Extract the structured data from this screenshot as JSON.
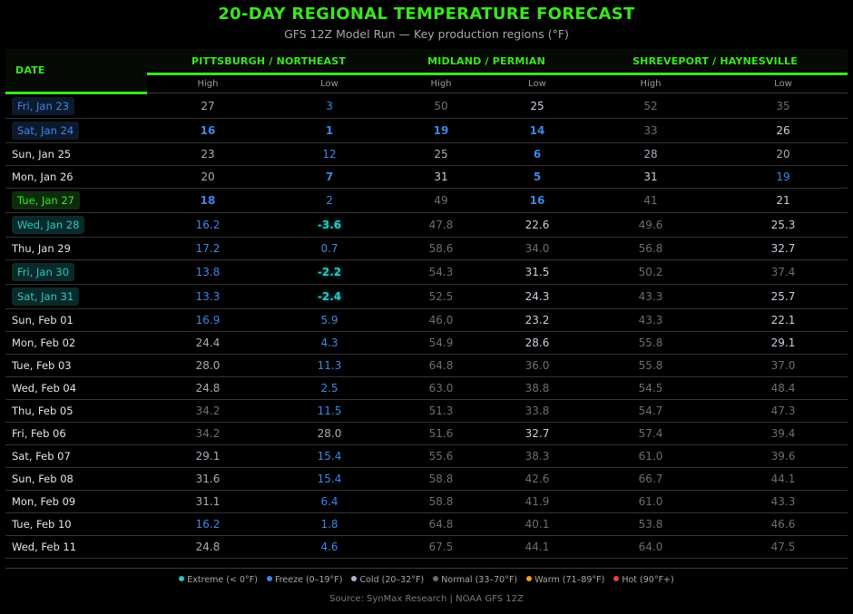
{
  "header": {
    "title": "20-DAY REGIONAL TEMPERATURE FORECAST",
    "subtitle": "GFS 12Z Model Run — Key production regions (°F)"
  },
  "table": {
    "date_header": "DATE",
    "regions": [
      {
        "name": "PITTSBURGH / NORTHEAST",
        "cols": [
          "High",
          "Low"
        ]
      },
      {
        "name": "MIDLAND / PERMIAN",
        "cols": [
          "High",
          "Low"
        ]
      },
      {
        "name": "SHREVEPORT / HAYNESVILLE",
        "cols": [
          "High",
          "Low"
        ]
      }
    ],
    "rows": [
      {
        "date": "Fri, Jan 23",
        "chip": "freeze",
        "vals": [
          "27",
          "3",
          "50",
          "25",
          "52",
          "35"
        ],
        "cls": [
          "v-cold-dim",
          "v-freeze",
          "v-normal",
          "v-cold",
          "v-normal",
          "v-normal"
        ]
      },
      {
        "date": "Sat, Jan 24",
        "chip": "freeze",
        "vals": [
          "16",
          "1",
          "19",
          "14",
          "33",
          "26"
        ],
        "cls": [
          "v-freeze-b",
          "v-freeze-b",
          "v-freeze-b",
          "v-freeze-b",
          "v-normal",
          "v-cold"
        ]
      },
      {
        "date": "Sun, Jan 25",
        "chip": "",
        "vals": [
          "23",
          "12",
          "25",
          "6",
          "28",
          "20"
        ],
        "cls": [
          "v-cold-dim",
          "v-freeze",
          "v-cold-dim",
          "v-freeze-b",
          "v-cold-dim",
          "v-cold-dim"
        ]
      },
      {
        "date": "Mon, Jan 26",
        "chip": "",
        "vals": [
          "20",
          "7",
          "31",
          "5",
          "31",
          "19"
        ],
        "cls": [
          "v-cold-dim",
          "v-freeze-b",
          "v-cold",
          "v-freeze-b",
          "v-cold",
          "v-freeze"
        ]
      },
      {
        "date": "Tue, Jan 27",
        "chip": "green",
        "vals": [
          "18",
          "2",
          "49",
          "16",
          "41",
          "21"
        ],
        "cls": [
          "v-freeze-b",
          "v-freeze",
          "v-normal",
          "v-freeze-b",
          "v-normal",
          "v-cold"
        ]
      },
      {
        "date": "Wed, Jan 28",
        "chip": "extreme",
        "vals": [
          "16.2",
          "-3.6",
          "47.8",
          "22.6",
          "49.6",
          "25.3"
        ],
        "cls": [
          "v-freeze",
          "v-extreme",
          "v-normal",
          "v-cold",
          "v-normal",
          "v-cold"
        ]
      },
      {
        "date": "Thu, Jan 29",
        "chip": "",
        "vals": [
          "17.2",
          "0.7",
          "58.6",
          "34.0",
          "56.8",
          "32.7"
        ],
        "cls": [
          "v-freeze",
          "v-freeze",
          "v-normal",
          "v-normal",
          "v-normal",
          "v-cold"
        ]
      },
      {
        "date": "Fri, Jan 30",
        "chip": "extreme",
        "vals": [
          "13.8",
          "-2.2",
          "54.3",
          "31.5",
          "50.2",
          "37.4"
        ],
        "cls": [
          "v-freeze",
          "v-extreme",
          "v-normal",
          "v-cold",
          "v-normal",
          "v-normal"
        ]
      },
      {
        "date": "Sat, Jan 31",
        "chip": "extreme",
        "vals": [
          "13.3",
          "-2.4",
          "52.5",
          "24.3",
          "43.3",
          "25.7"
        ],
        "cls": [
          "v-freeze",
          "v-extreme",
          "v-normal",
          "v-cold",
          "v-normal",
          "v-cold"
        ]
      },
      {
        "date": "Sun, Feb 01",
        "chip": "",
        "vals": [
          "16.9",
          "5.9",
          "46.0",
          "23.2",
          "43.3",
          "22.1"
        ],
        "cls": [
          "v-freeze",
          "v-freeze",
          "v-normal",
          "v-cold",
          "v-normal",
          "v-cold"
        ]
      },
      {
        "date": "Mon, Feb 02",
        "chip": "",
        "vals": [
          "24.4",
          "4.3",
          "54.9",
          "28.6",
          "55.8",
          "29.1"
        ],
        "cls": [
          "v-cold-dim",
          "v-freeze",
          "v-normal",
          "v-cold",
          "v-normal",
          "v-cold"
        ]
      },
      {
        "date": "Tue, Feb 03",
        "chip": "",
        "vals": [
          "28.0",
          "11.3",
          "64.8",
          "36.0",
          "55.8",
          "37.0"
        ],
        "cls": [
          "v-cold-dim",
          "v-freeze",
          "v-normal",
          "v-normal",
          "v-normal",
          "v-normal"
        ]
      },
      {
        "date": "Wed, Feb 04",
        "chip": "",
        "vals": [
          "24.8",
          "2.5",
          "63.0",
          "38.8",
          "54.5",
          "48.4"
        ],
        "cls": [
          "v-cold-dim",
          "v-freeze",
          "v-normal",
          "v-normal",
          "v-normal",
          "v-normal"
        ]
      },
      {
        "date": "Thu, Feb 05",
        "chip": "",
        "vals": [
          "34.2",
          "11.5",
          "51.3",
          "33.8",
          "54.7",
          "47.3"
        ],
        "cls": [
          "v-normal",
          "v-freeze",
          "v-normal",
          "v-normal",
          "v-normal",
          "v-normal"
        ]
      },
      {
        "date": "Fri, Feb 06",
        "chip": "",
        "vals": [
          "34.2",
          "28.0",
          "51.6",
          "32.7",
          "57.4",
          "39.4"
        ],
        "cls": [
          "v-normal",
          "v-cold-dim",
          "v-normal",
          "v-cold",
          "v-normal",
          "v-normal"
        ]
      },
      {
        "date": "Sat, Feb 07",
        "chip": "",
        "vals": [
          "29.1",
          "15.4",
          "55.6",
          "38.3",
          "61.0",
          "39.6"
        ],
        "cls": [
          "v-cold-dim",
          "v-freeze",
          "v-normal",
          "v-normal",
          "v-normal",
          "v-normal"
        ]
      },
      {
        "date": "Sun, Feb 08",
        "chip": "",
        "vals": [
          "31.6",
          "15.4",
          "58.8",
          "42.6",
          "66.7",
          "44.1"
        ],
        "cls": [
          "v-cold-dim",
          "v-freeze",
          "v-normal",
          "v-normal",
          "v-normal",
          "v-normal"
        ]
      },
      {
        "date": "Mon, Feb 09",
        "chip": "",
        "vals": [
          "31.1",
          "6.4",
          "58.8",
          "41.9",
          "61.0",
          "43.3"
        ],
        "cls": [
          "v-cold-dim",
          "v-freeze",
          "v-normal",
          "v-normal",
          "v-normal",
          "v-normal"
        ]
      },
      {
        "date": "Tue, Feb 10",
        "chip": "",
        "vals": [
          "16.2",
          "1.8",
          "64.8",
          "40.1",
          "53.8",
          "46.6"
        ],
        "cls": [
          "v-freeze",
          "v-freeze",
          "v-normal",
          "v-normal",
          "v-normal",
          "v-normal"
        ]
      },
      {
        "date": "Wed, Feb 11",
        "chip": "",
        "vals": [
          "24.8",
          "4.6",
          "67.5",
          "44.1",
          "64.0",
          "47.5"
        ],
        "cls": [
          "v-cold-dim",
          "v-freeze",
          "v-normal",
          "v-normal",
          "v-normal",
          "v-normal"
        ]
      }
    ]
  },
  "legend": [
    {
      "label": "Extreme (< 0°F)",
      "color": "#2bc6c6"
    },
    {
      "label": "Freeze (0–19°F)",
      "color": "#3f86e6"
    },
    {
      "label": "Cold (20–32°F)",
      "color": "#a9b4cc"
    },
    {
      "label": "Normal (33–70°F)",
      "color": "#6e6e6e"
    },
    {
      "label": "Warm (71–89°F)",
      "color": "#f0a020"
    },
    {
      "label": "Hot (90°F+)",
      "color": "#e84040"
    }
  ],
  "footer": {
    "source": "Source: SynMax Research | NOAA GFS 12Z"
  }
}
